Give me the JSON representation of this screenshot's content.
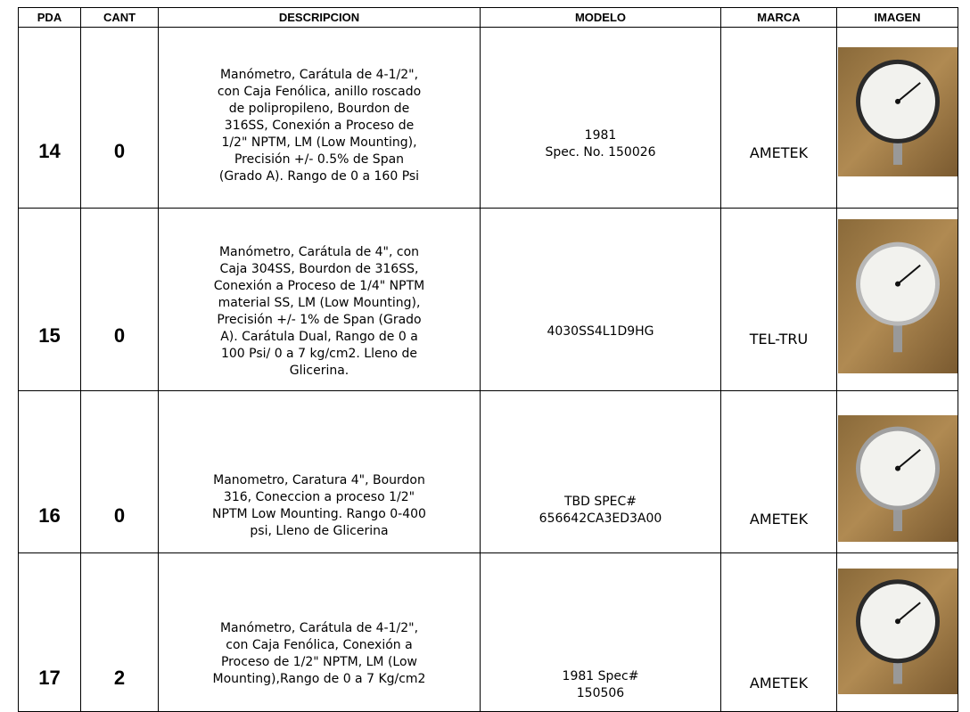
{
  "table": {
    "columns": [
      "PDA",
      "CANT",
      "DESCRIPCION",
      "MODELO",
      "MARCA",
      "IMAGEN"
    ],
    "rows": [
      {
        "pda": 14,
        "cant": 0,
        "descripcion": [
          "Manómetro, Carátula de 4-1/2\",",
          "con Caja Fenólica, anillo roscado",
          "de polipropileno, Bourdon de",
          "316SS, Conexión a Proceso de",
          "1/2\" NPTM, LM (Low Mounting),",
          "Precisión +/- 0.5% de Span",
          "(Grado A). Rango de 0 a 160 Psi"
        ],
        "modelo": [
          "1981",
          "Spec. No. 150026"
        ],
        "marca": "AMETEK"
      },
      {
        "pda": 15,
        "cant": 0,
        "descripcion": [
          "Manómetro, Carátula de 4\", con",
          "Caja 304SS, Bourdon de 316SS,",
          "Conexión a Proceso de 1/4\" NPTM",
          "material SS, LM (Low Mounting),",
          "Precisión +/- 1% de Span (Grado",
          "A). Carátula Dual, Rango de 0 a",
          "100 Psi/ 0 a 7 kg/cm2. Lleno de",
          "Glicerina."
        ],
        "modelo": [
          "4030SS4L1D9HG"
        ],
        "marca": "TEL-TRU"
      },
      {
        "pda": 16,
        "cant": 0,
        "descripcion": [
          "Manometro, Caratura 4\", Bourdon",
          "316, Coneccion a proceso 1/2\"",
          "NPTM Low Mounting. Rango 0-400",
          "psi, Lleno de Glicerina"
        ],
        "modelo": [
          "TBD SPEC#",
          "656642CA3ED3A00"
        ],
        "marca": "AMETEK"
      },
      {
        "pda": 17,
        "cant": 2,
        "descripcion": [
          "Manómetro, Carátula de 4-1/2\",",
          "con Caja Fenólica, Conexión a",
          "Proceso de 1/2\" NPTM, LM (Low",
          "Mounting),Rango de 0 a 7 Kg/cm2"
        ],
        "modelo": [
          "1981 Spec#",
          "150506"
        ],
        "marca": "AMETEK"
      }
    ]
  }
}
